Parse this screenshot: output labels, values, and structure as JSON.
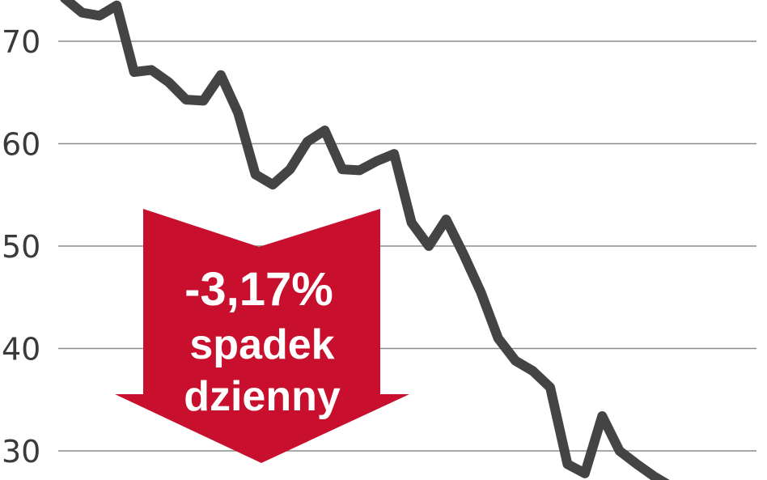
{
  "chart_data": {
    "type": "line",
    "title": "",
    "xlabel": "",
    "ylabel": "",
    "y_ticks": [
      "70",
      "60",
      "50",
      "40",
      "30"
    ],
    "y_tick_values": [
      70,
      60,
      50,
      40,
      30
    ],
    "ylim": [
      26,
      74.2
    ],
    "grid": "horizontal",
    "series": [
      {
        "values": [
          74.2,
          72.8,
          72.5,
          73.5,
          67.0,
          67.2,
          66.0,
          64.3,
          64.2,
          66.7,
          63.0,
          57.0,
          56.0,
          57.5,
          60.2,
          61.3,
          57.5,
          57.4,
          58.3,
          59.0,
          52.3,
          50.0,
          52.6,
          49.2,
          45.5,
          41.0,
          38.8,
          37.8,
          36.2,
          28.7,
          27.8,
          33.4,
          30.0,
          28.7,
          27.5,
          26.5
        ]
      }
    ],
    "line_color": "#444444",
    "annotation": {
      "value": "-3,17%",
      "line1": "spadek",
      "line2": "dzienny",
      "color": "#c8102e"
    }
  }
}
